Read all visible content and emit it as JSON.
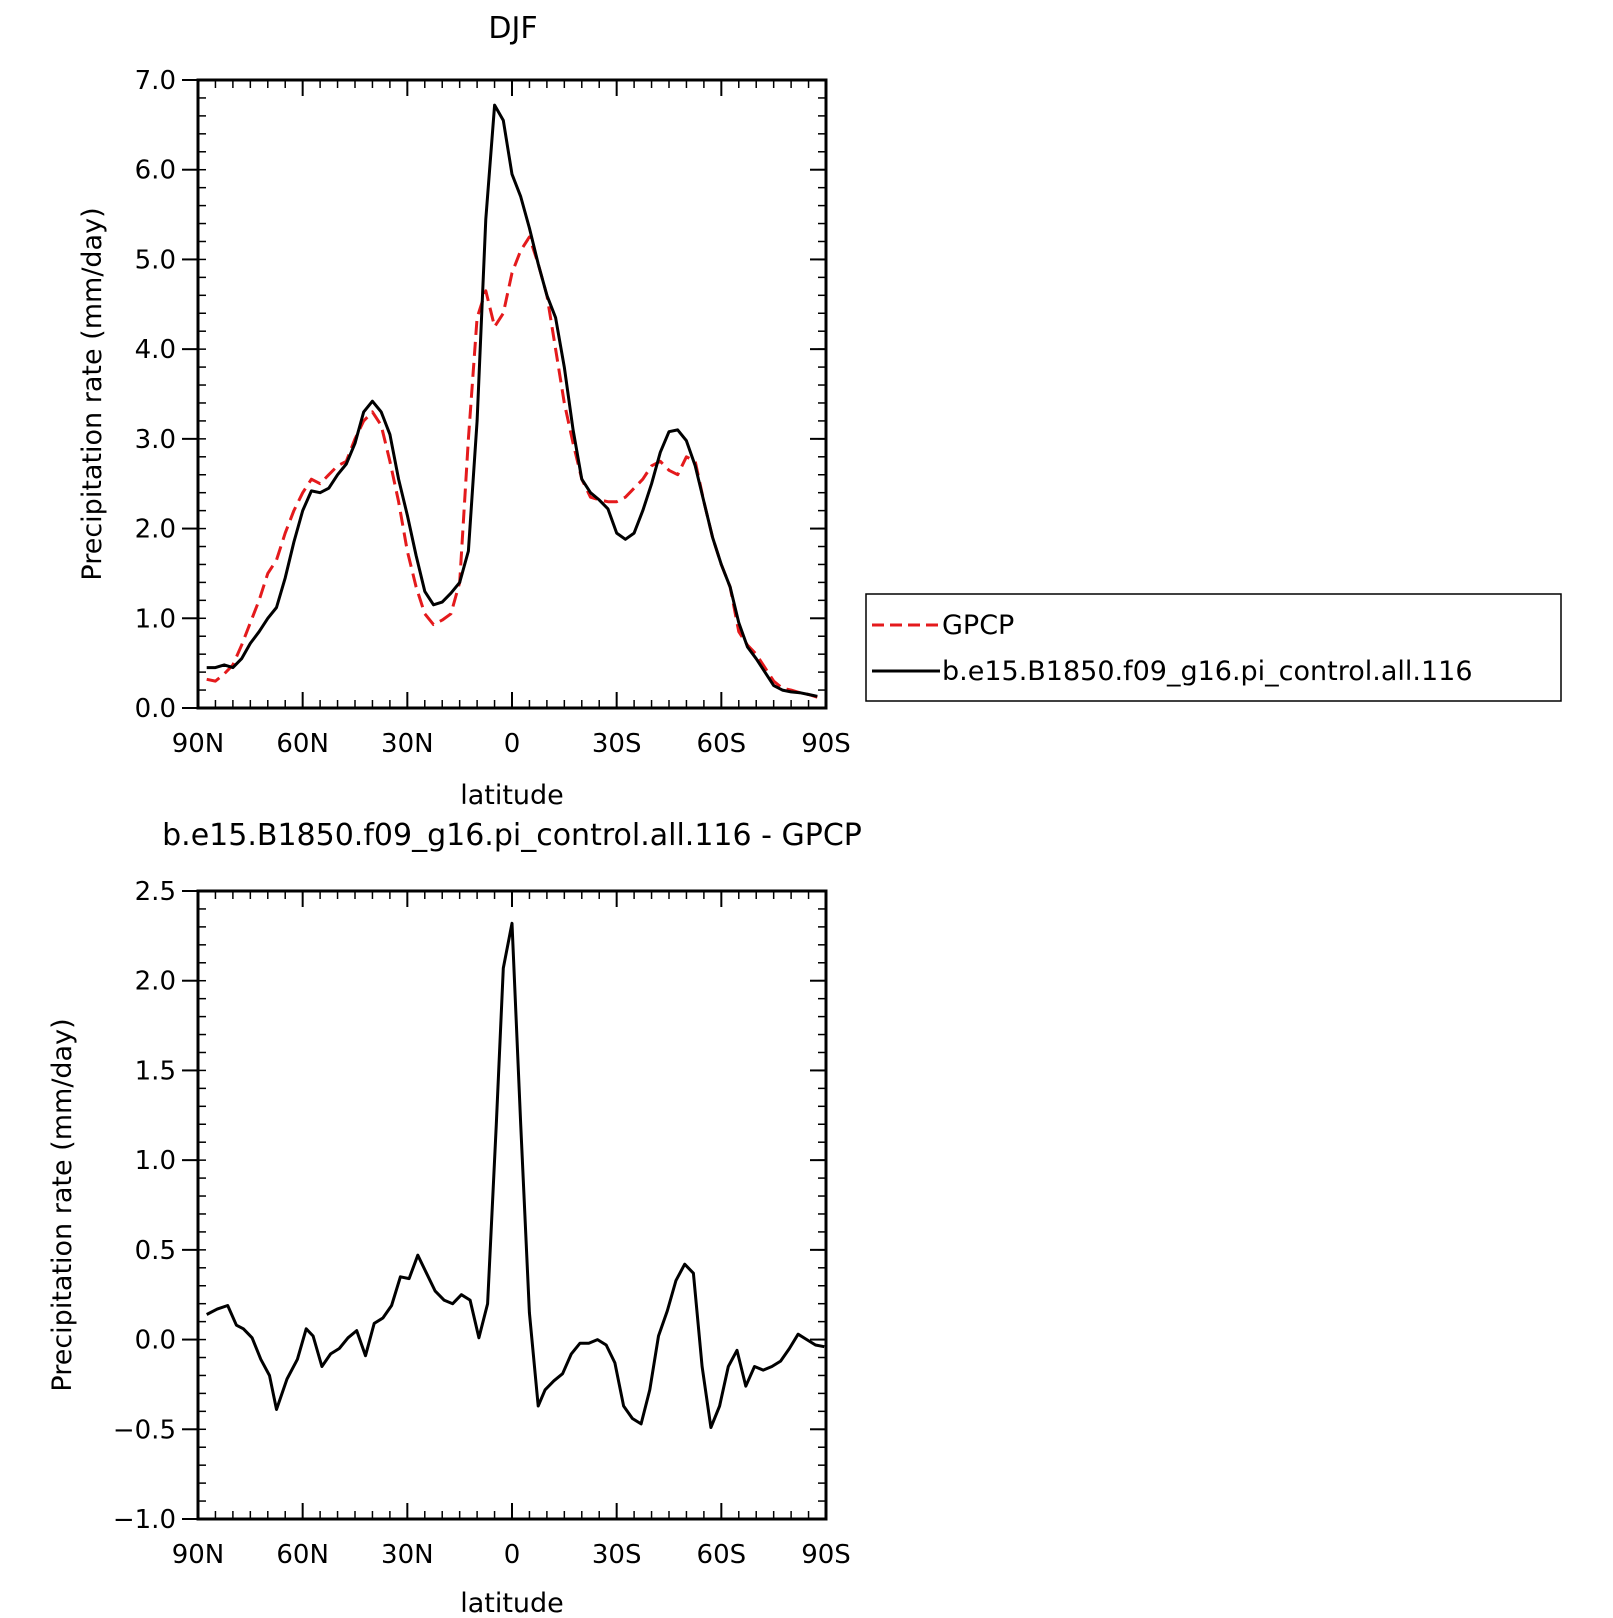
{
  "chart_data": [
    {
      "type": "line",
      "title": "DJF",
      "xlabel": "latitude",
      "ylabel": "Precipitation rate (mm/day)",
      "xlim": [
        90,
        -90
      ],
      "ylim": [
        0,
        7
      ],
      "xticks": [
        90,
        60,
        30,
        0,
        -30,
        -60,
        -90
      ],
      "xtick_labels": [
        "90N",
        "60N",
        "30N",
        "0",
        "30S",
        "60S",
        "90S"
      ],
      "yticks": [
        0,
        1,
        2,
        3,
        4,
        5,
        6,
        7
      ],
      "ytick_labels": [
        "0.0",
        "1.0",
        "2.0",
        "3.0",
        "4.0",
        "5.0",
        "6.0",
        "7.0"
      ],
      "legend": {
        "position": "right"
      },
      "series": [
        {
          "name": "GPCP",
          "color": "#e41a1c",
          "dash": "dashed",
          "x": [
            87.5,
            85,
            82.5,
            80,
            77.5,
            75,
            72.5,
            70,
            67.5,
            65,
            62.5,
            60,
            57.5,
            55,
            52.5,
            50,
            47.5,
            45,
            42.5,
            40,
            37.5,
            35,
            32.5,
            30,
            27.5,
            25,
            22.5,
            20,
            17.5,
            15,
            12.5,
            10,
            7.5,
            5,
            2.5,
            0,
            -2.5,
            -5,
            -7.5,
            -10,
            -12.5,
            -15,
            -17.5,
            -20,
            -22.5,
            -25,
            -27.5,
            -30,
            -32.5,
            -35,
            -37.5,
            -40,
            -42.5,
            -45,
            -47.5,
            -50,
            -52.5,
            -55,
            -57.5,
            -60,
            -62.5,
            -65,
            -67.5,
            -70,
            -72.5,
            -75,
            -77.5,
            -80,
            -82.5,
            -85,
            -87.5
          ],
          "y": [
            0.32,
            0.3,
            0.38,
            0.48,
            0.7,
            0.95,
            1.2,
            1.5,
            1.65,
            1.95,
            2.2,
            2.4,
            2.55,
            2.5,
            2.6,
            2.7,
            2.75,
            3.0,
            3.2,
            3.3,
            3.15,
            2.75,
            2.3,
            1.75,
            1.35,
            1.05,
            0.93,
            0.98,
            1.05,
            1.4,
            3.0,
            4.35,
            4.65,
            4.25,
            4.4,
            4.85,
            5.1,
            5.25,
            4.95,
            4.6,
            4.0,
            3.4,
            2.95,
            2.55,
            2.35,
            2.32,
            2.3,
            2.3,
            2.35,
            2.45,
            2.55,
            2.7,
            2.75,
            2.65,
            2.6,
            2.8,
            2.75,
            2.3,
            1.9,
            1.6,
            1.35,
            0.85,
            0.7,
            0.6,
            0.45,
            0.3,
            0.22,
            0.2,
            0.17,
            0.15,
            0.12
          ]
        },
        {
          "name": "b.e15.B1850.f09_g16.pi_control.all.116",
          "color": "#000000",
          "dash": "solid",
          "x": [
            87.5,
            85,
            82.5,
            80,
            77.5,
            75,
            72.5,
            70,
            67.5,
            65,
            62.5,
            60,
            57.5,
            55,
            52.5,
            50,
            47.5,
            45,
            42.5,
            40,
            37.5,
            35,
            32.5,
            30,
            27.5,
            25,
            22.5,
            20,
            17.5,
            15,
            12.5,
            10,
            7.5,
            5,
            2.5,
            0,
            -2.5,
            -5,
            -7.5,
            -10,
            -12.5,
            -15,
            -17.5,
            -20,
            -22.5,
            -25,
            -27.5,
            -30,
            -32.5,
            -35,
            -37.5,
            -40,
            -42.5,
            -45,
            -47.5,
            -50,
            -52.5,
            -55,
            -57.5,
            -60,
            -62.5,
            -65,
            -67.5,
            -70,
            -72.5,
            -75,
            -77.5,
            -80,
            -82.5,
            -85,
            -87.5
          ],
          "y": [
            0.45,
            0.45,
            0.48,
            0.45,
            0.55,
            0.72,
            0.85,
            1.0,
            1.12,
            1.45,
            1.85,
            2.2,
            2.42,
            2.4,
            2.45,
            2.6,
            2.72,
            2.95,
            3.3,
            3.42,
            3.3,
            3.05,
            2.55,
            2.15,
            1.7,
            1.3,
            1.15,
            1.18,
            1.28,
            1.4,
            1.75,
            3.2,
            5.45,
            6.72,
            6.55,
            5.95,
            5.7,
            5.35,
            4.95,
            4.6,
            4.35,
            3.8,
            3.1,
            2.55,
            2.4,
            2.32,
            2.22,
            1.95,
            1.88,
            1.95,
            2.2,
            2.5,
            2.85,
            3.08,
            3.1,
            2.98,
            2.7,
            2.3,
            1.9,
            1.6,
            1.35,
            0.95,
            0.68,
            0.55,
            0.4,
            0.25,
            0.2,
            0.18,
            0.17,
            0.15,
            0.13
          ]
        }
      ]
    },
    {
      "type": "line",
      "title": "b.e15.B1850.f09_g16.pi_control.all.116 - GPCP",
      "xlabel": "latitude",
      "ylabel": "Precipitation rate (mm/day)",
      "xlim": [
        90,
        -90
      ],
      "ylim": [
        -1,
        2.5
      ],
      "xticks": [
        90,
        60,
        30,
        0,
        -30,
        -60,
        -90
      ],
      "xtick_labels": [
        "90N",
        "60N",
        "30N",
        "0",
        "30S",
        "60S",
        "90S"
      ],
      "yticks": [
        -1,
        -0.5,
        0,
        0.5,
        1,
        1.5,
        2,
        2.5
      ],
      "ytick_labels": [
        "−1.0",
        "−0.5",
        "0.0",
        "0.5",
        "1.0",
        "1.5",
        "2.0",
        "2.5"
      ],
      "series": [
        {
          "color": "#000000",
          "dash": "solid",
          "x": [
            87.5,
            84.5,
            81.5,
            79,
            77,
            74.5,
            72,
            69.5,
            67.5,
            64.5,
            61.5,
            59,
            57,
            54.5,
            52,
            49.5,
            47,
            44.5,
            42,
            39.5,
            37,
            34.5,
            32,
            29.5,
            27,
            24.5,
            22,
            19.5,
            17,
            14.5,
            12,
            9.5,
            7,
            4.5,
            2.5,
            0,
            -2.5,
            -5,
            -7.5,
            -9.5,
            -12,
            -14.5,
            -17,
            -19.5,
            -22,
            -24.5,
            -27,
            -29.5,
            -32,
            -34.5,
            -37,
            -39.5,
            -42,
            -44.5,
            -47,
            -49.5,
            -52,
            -54.5,
            -57,
            -59.5,
            -62,
            -64.5,
            -67,
            -69.5,
            -72,
            -74.5,
            -77,
            -79.5,
            -82,
            -84.5,
            -87,
            -89.5
          ],
          "y": [
            0.14,
            0.17,
            0.19,
            0.08,
            0.06,
            0.01,
            -0.11,
            -0.2,
            -0.39,
            -0.22,
            -0.11,
            0.06,
            0.02,
            -0.15,
            -0.08,
            -0.05,
            0.01,
            0.05,
            -0.09,
            0.09,
            0.12,
            0.19,
            0.35,
            0.34,
            0.47,
            0.37,
            0.27,
            0.22,
            0.2,
            0.25,
            0.22,
            0.01,
            0.2,
            1.2,
            2.07,
            2.32,
            1.2,
            0.15,
            -0.37,
            -0.28,
            -0.23,
            -0.19,
            -0.08,
            -0.02,
            -0.02,
            0.0,
            -0.03,
            -0.13,
            -0.37,
            -0.44,
            -0.47,
            -0.28,
            0.02,
            0.16,
            0.33,
            0.42,
            0.37,
            -0.15,
            -0.49,
            -0.37,
            -0.15,
            -0.06,
            -0.26,
            -0.15,
            -0.17,
            -0.15,
            -0.12,
            -0.05,
            0.03,
            0.0,
            -0.03,
            -0.04
          ]
        }
      ]
    }
  ]
}
